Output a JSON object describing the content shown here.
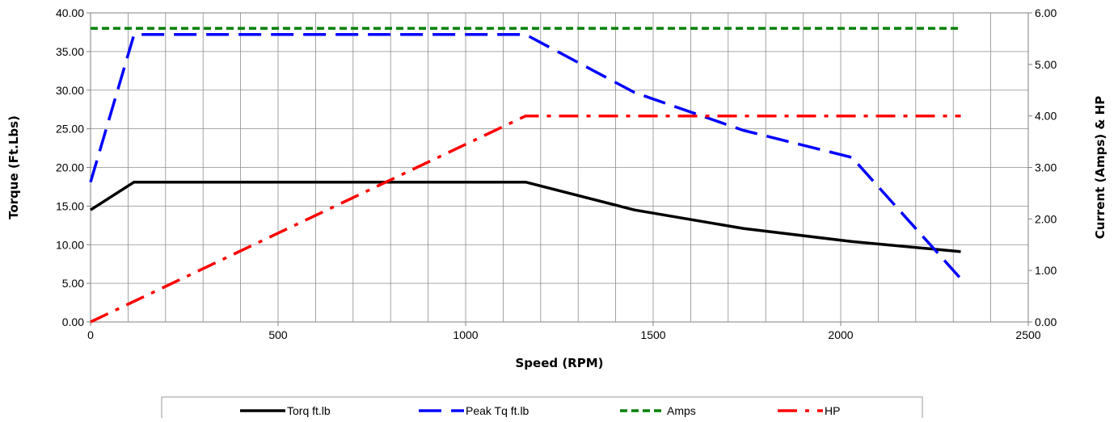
{
  "chart_data": {
    "type": "line",
    "xlabel": "Speed (RPM)",
    "ylabel_left": "Torque (Ft.Lbs)",
    "ylabel_right": "Current (Amps) & HP",
    "xlim": [
      0,
      2500
    ],
    "ylim_left": [
      0,
      40
    ],
    "ylim_right": [
      0,
      6
    ],
    "x_ticks": [
      "0",
      "500",
      "1000",
      "1500",
      "2000",
      "2500"
    ],
    "y_left_ticks": [
      "0.00",
      "5.00",
      "10.00",
      "15.00",
      "20.00",
      "25.00",
      "30.00",
      "35.00",
      "40.00"
    ],
    "y_right_ticks": [
      "0.00",
      "1.00",
      "2.00",
      "3.00",
      "4.00",
      "5.00",
      "6.00"
    ],
    "grid": true,
    "legend_position": "bottom",
    "series": [
      {
        "name": "Torq ft.lb",
        "axis": "left",
        "color": "#000000",
        "dash": "solid",
        "x": [
          0,
          116,
          1160,
          1450,
          1740,
          2030,
          2320
        ],
        "y": [
          14.5,
          18.1,
          18.1,
          14.5,
          12.1,
          10.4,
          9.1
        ]
      },
      {
        "name": "Peak Tq ft.lb",
        "axis": "left",
        "color": "#0000ff",
        "dash": "long-dash",
        "x": [
          0,
          116,
          1160,
          1450,
          1740,
          2030,
          2320
        ],
        "y": [
          18.1,
          37.2,
          37.2,
          29.7,
          24.8,
          21.3,
          5.6
        ]
      },
      {
        "name": "Amps",
        "axis": "right",
        "color": "#008000",
        "dash": "short-dash",
        "x": [
          0,
          2320
        ],
        "y": [
          5.7,
          5.7
        ]
      },
      {
        "name": "HP",
        "axis": "right",
        "color": "#ff0000",
        "dash": "dash-dot",
        "x": [
          0,
          1160,
          2320
        ],
        "y": [
          0,
          4.0,
          4.0
        ]
      }
    ]
  }
}
